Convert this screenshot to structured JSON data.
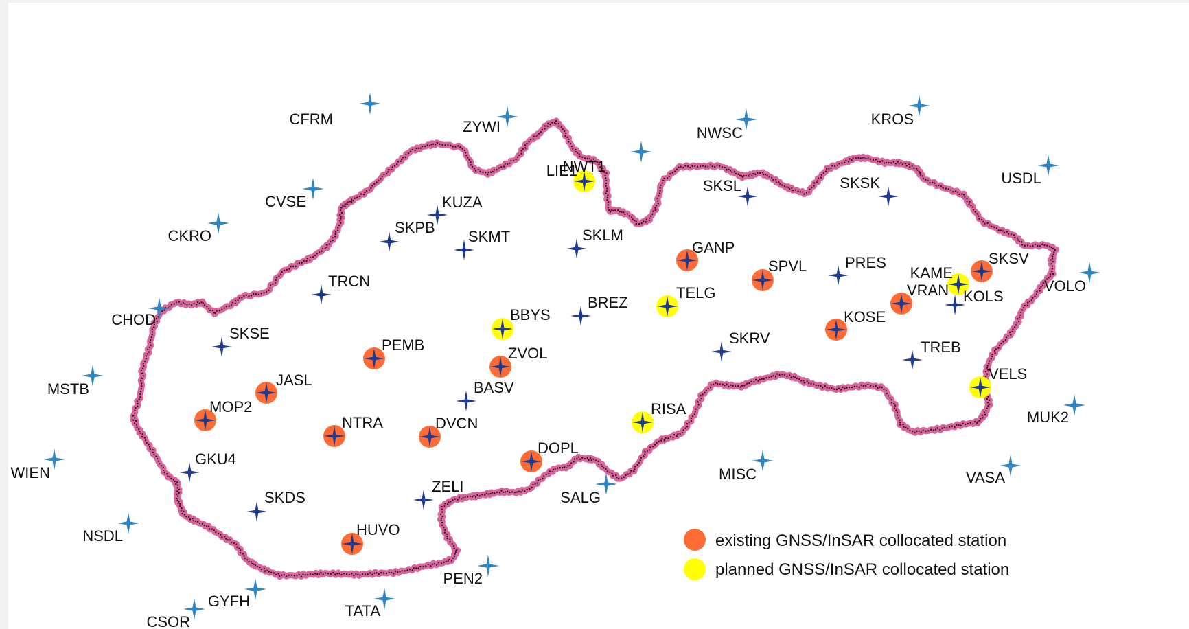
{
  "colors": {
    "background": "#ffffff",
    "border_fill": "#d8669a",
    "border_edge": "#2b1028",
    "external_station": "#2f86c1",
    "domestic_station": "#1f3b8f",
    "existing_collocated": "#ff6b35",
    "planned_collocated": "#ffff00"
  },
  "icons": {
    "station": "four-point-star-icon",
    "collocated": "filled-circle-icon"
  },
  "stations": [
    {
      "id": "CFRM",
      "kind": "external",
      "status": "none"
    },
    {
      "id": "ZYWI",
      "kind": "external",
      "status": "none"
    },
    {
      "id": "NWSC",
      "kind": "external",
      "status": "none"
    },
    {
      "id": "KROS",
      "kind": "external",
      "status": "none"
    },
    {
      "id": "USDL",
      "kind": "external",
      "status": "none"
    },
    {
      "id": "CVSE",
      "kind": "external",
      "status": "none"
    },
    {
      "id": "CKRO",
      "kind": "external",
      "status": "none"
    },
    {
      "id": "CHOD",
      "kind": "external",
      "status": "none"
    },
    {
      "id": "MSTB",
      "kind": "external",
      "status": "none"
    },
    {
      "id": "WIEN",
      "kind": "external",
      "status": "none"
    },
    {
      "id": "NSDL",
      "kind": "external",
      "status": "none"
    },
    {
      "id": "GYFH",
      "kind": "external",
      "status": "none"
    },
    {
      "id": "CSOR",
      "kind": "external",
      "status": "none"
    },
    {
      "id": "TATA",
      "kind": "external",
      "status": "none"
    },
    {
      "id": "PEN2",
      "kind": "external",
      "status": "none"
    },
    {
      "id": "SALG",
      "kind": "external",
      "status": "none"
    },
    {
      "id": "MISC",
      "kind": "external",
      "status": "none"
    },
    {
      "id": "VASA",
      "kind": "external",
      "status": "none"
    },
    {
      "id": "MUK2",
      "kind": "external",
      "status": "none"
    },
    {
      "id": "VOLO",
      "kind": "external",
      "status": "none"
    },
    {
      "id": "NWT1",
      "kind": "external",
      "status": "none"
    },
    {
      "id": "LIE1",
      "kind": "domestic",
      "status": "planned"
    },
    {
      "id": "SKSL",
      "kind": "domestic",
      "status": "none"
    },
    {
      "id": "SKSK",
      "kind": "domestic",
      "status": "none"
    },
    {
      "id": "KUZA",
      "kind": "domestic",
      "status": "none"
    },
    {
      "id": "SKPB",
      "kind": "domestic",
      "status": "none"
    },
    {
      "id": "SKMT",
      "kind": "domestic",
      "status": "none"
    },
    {
      "id": "SKLM",
      "kind": "domestic",
      "status": "none"
    },
    {
      "id": "GANP",
      "kind": "domestic",
      "status": "existing"
    },
    {
      "id": "SPVL",
      "kind": "domestic",
      "status": "existing"
    },
    {
      "id": "PRES",
      "kind": "domestic",
      "status": "none"
    },
    {
      "id": "KAME",
      "kind": "domestic",
      "status": "planned"
    },
    {
      "id": "SKSV",
      "kind": "domestic",
      "status": "existing"
    },
    {
      "id": "VRAN",
      "kind": "domestic",
      "status": "existing"
    },
    {
      "id": "KOLS",
      "kind": "domestic",
      "status": "none"
    },
    {
      "id": "TRCN",
      "kind": "domestic",
      "status": "none"
    },
    {
      "id": "BREZ",
      "kind": "domestic",
      "status": "none"
    },
    {
      "id": "TELG",
      "kind": "domestic",
      "status": "planned"
    },
    {
      "id": "BBYS",
      "kind": "domestic",
      "status": "planned"
    },
    {
      "id": "KOSE",
      "kind": "domestic",
      "status": "existing"
    },
    {
      "id": "SKSE",
      "kind": "domestic",
      "status": "none"
    },
    {
      "id": "PEMB",
      "kind": "domestic",
      "status": "existing"
    },
    {
      "id": "ZVOL",
      "kind": "domestic",
      "status": "existing"
    },
    {
      "id": "SKRV",
      "kind": "domestic",
      "status": "none"
    },
    {
      "id": "TREB",
      "kind": "domestic",
      "status": "none"
    },
    {
      "id": "JASL",
      "kind": "domestic",
      "status": "existing"
    },
    {
      "id": "BASV",
      "kind": "domestic",
      "status": "none"
    },
    {
      "id": "VELS",
      "kind": "domestic",
      "status": "planned"
    },
    {
      "id": "MOP2",
      "kind": "domestic",
      "status": "existing"
    },
    {
      "id": "NTRA",
      "kind": "domestic",
      "status": "existing"
    },
    {
      "id": "DVCN",
      "kind": "domestic",
      "status": "existing"
    },
    {
      "id": "RISA",
      "kind": "domestic",
      "status": "planned"
    },
    {
      "id": "DOPL",
      "kind": "domestic",
      "status": "existing"
    },
    {
      "id": "GKU4",
      "kind": "domestic",
      "status": "none"
    },
    {
      "id": "SKDS",
      "kind": "domestic",
      "status": "none"
    },
    {
      "id": "ZELI",
      "kind": "domestic",
      "status": "none"
    },
    {
      "id": "HUVO",
      "kind": "domestic",
      "status": "existing"
    }
  ],
  "legend": {
    "existing_label": "existing GNSS/InSAR collocated station",
    "planned_label": "planned GNSS/InSAR collocated station"
  }
}
